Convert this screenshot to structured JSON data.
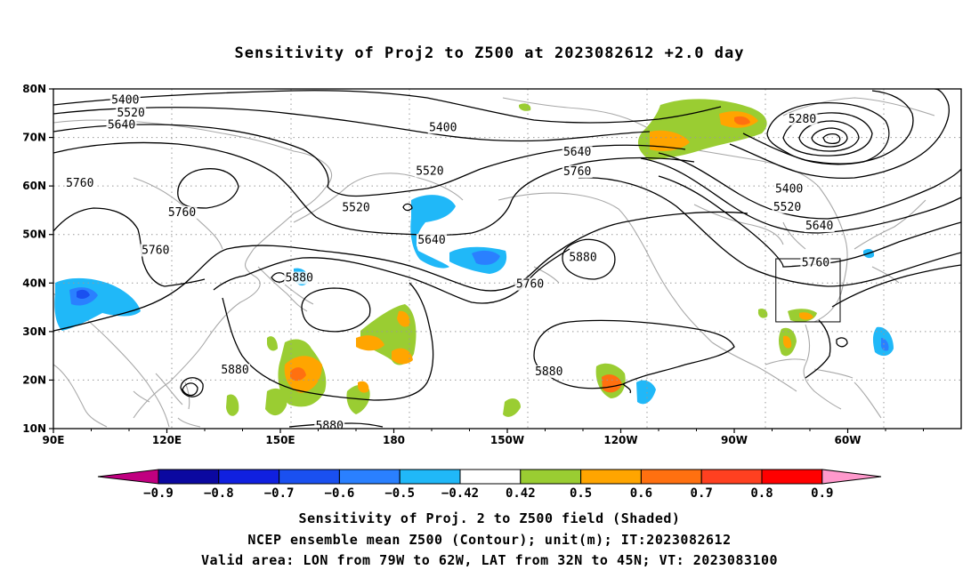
{
  "title": "Sensitivity of Proj2 to Z500 at 2023082612 +2.0 day",
  "map": {
    "lon_ticks": [
      "90E",
      "120E",
      "150E",
      "180",
      "150W",
      "120W",
      "90W",
      "60W"
    ],
    "lat_ticks": [
      "10N",
      "20N",
      "30N",
      "40N",
      "50N",
      "60N",
      "70N",
      "80N"
    ],
    "contour_labels": [
      {
        "text": "5400",
        "lon": 109,
        "lat": 77.2
      },
      {
        "text": "5520",
        "lon": 110.5,
        "lat": 74.5
      },
      {
        "text": "5640",
        "lon": 108,
        "lat": 72
      },
      {
        "text": "5760",
        "lon": 97,
        "lat": 60
      },
      {
        "text": "5760",
        "lon": 124,
        "lat": 54
      },
      {
        "text": "5760",
        "lon": 117,
        "lat": 46.2
      },
      {
        "text": "5880",
        "lon": 155,
        "lat": 40.5
      },
      {
        "text": "5880",
        "lon": 138,
        "lat": 21.5
      },
      {
        "text": "5880",
        "lon": 163,
        "lat": 10
      },
      {
        "text": "5400",
        "lon": 193,
        "lat": 71.5
      },
      {
        "text": "5520",
        "lon": 189.5,
        "lat": 62.5
      },
      {
        "text": "5520",
        "lon": 170,
        "lat": 55
      },
      {
        "text": "5640",
        "lon": 190,
        "lat": 48.3
      },
      {
        "text": "5640",
        "lon": 228.5,
        "lat": 66.4
      },
      {
        "text": "5760",
        "lon": 228.5,
        "lat": 62.4
      },
      {
        "text": "5760",
        "lon": 216,
        "lat": 39.2
      },
      {
        "text": "5880",
        "lon": 230,
        "lat": 44.7
      },
      {
        "text": "5880",
        "lon": 221,
        "lat": 21.2
      },
      {
        "text": "5280",
        "lon": 288,
        "lat": 73.2
      },
      {
        "text": "5400",
        "lon": 284.5,
        "lat": 58.8
      },
      {
        "text": "5520",
        "lon": 284,
        "lat": 55.1
      },
      {
        "text": "5640",
        "lon": 292.5,
        "lat": 51.2
      },
      {
        "text": "5760",
        "lon": 291.5,
        "lat": 43.6
      }
    ],
    "valid_box": {
      "lon_w": 281,
      "lon_e": 298,
      "lat_s": 32,
      "lat_n": 45
    }
  },
  "colorbar": {
    "labels": [
      "-0.9",
      "-0.8",
      "-0.7",
      "-0.6",
      "-0.5",
      "-0.42",
      "0.42",
      "0.5",
      "0.6",
      "0.7",
      "0.8",
      "0.9"
    ],
    "colors": [
      "#0b08a0",
      "#1020e0",
      "#1a50f0",
      "#2a80ff",
      "#20b8f8",
      "#ffffff",
      "#9acd32",
      "#ffa500",
      "#ff7010",
      "#ff4020",
      "#ff0000"
    ],
    "low_color": "#c00080",
    "high_color": "#ff99cc"
  },
  "captions": {
    "line1": "Sensitivity of Proj. 2 to Z500 field (Shaded)",
    "line2": "NCEP ensemble mean Z500 (Contour); unit(m); IT:2023082612",
    "line3": "Valid area: LON from 79W to 62W, LAT from 32N to 45N; VT: 2023083100"
  }
}
